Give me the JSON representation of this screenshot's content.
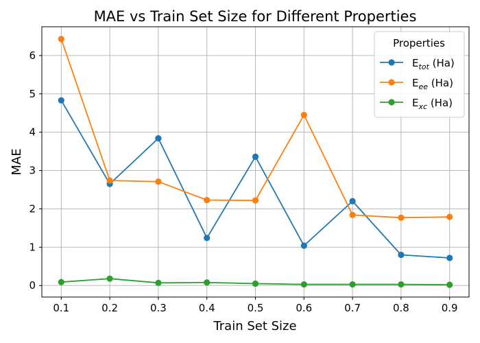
{
  "chart_data": {
    "type": "line",
    "title": "MAE vs Train Set Size for Different Properties",
    "xlabel": "Train Set Size",
    "ylabel": "MAE",
    "x": [
      0.1,
      0.2,
      0.3,
      0.4,
      0.5,
      0.6,
      0.7,
      0.8,
      0.9
    ],
    "x_ticks": [
      "0.1",
      "0.2",
      "0.3",
      "0.4",
      "0.5",
      "0.6",
      "0.7",
      "0.8",
      "0.9"
    ],
    "y_ticks": [
      "0",
      "1",
      "2",
      "3",
      "4",
      "5",
      "6"
    ],
    "xlim": [
      0.06,
      0.94
    ],
    "ylim": [
      -0.3,
      6.75
    ],
    "grid": true,
    "legend": {
      "title": "Properties",
      "placement": "top-right"
    },
    "series": [
      {
        "name": "E_tot (Ha)",
        "label_base": "E",
        "label_sub": "tot",
        "label_suffix": " (Ha)",
        "color": "#1f77b4",
        "values": [
          4.83,
          2.65,
          3.84,
          1.24,
          3.36,
          1.04,
          2.2,
          0.8,
          0.72
        ]
      },
      {
        "name": "E_ee (Ha)",
        "label_base": "E",
        "label_sub": "ee",
        "label_suffix": " (Ha)",
        "color": "#ff7f0e",
        "values": [
          6.43,
          2.74,
          2.71,
          2.23,
          2.22,
          4.45,
          1.84,
          1.77,
          1.79
        ]
      },
      {
        "name": "E_xc (Ha)",
        "label_base": "E",
        "label_sub": "xc",
        "label_suffix": " (Ha)",
        "color": "#2ca02c",
        "values": [
          0.09,
          0.18,
          0.07,
          0.08,
          0.05,
          0.03,
          0.03,
          0.03,
          0.02
        ]
      }
    ]
  }
}
